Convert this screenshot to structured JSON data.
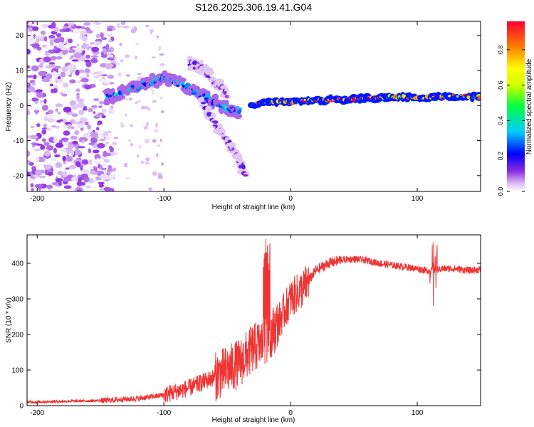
{
  "page": {
    "title": "S126.2025.306.19.41.G04"
  },
  "chart_data": [
    {
      "type": "heatmap",
      "title": "S126.2025.306.19.41.G04",
      "xlabel": "Height of straight line (km)",
      "ylabel": "Frequency (Hz)",
      "xlim": [
        -208,
        150
      ],
      "ylim": [
        -24.5,
        24
      ],
      "xticks": [
        -200,
        -100,
        0,
        100
      ],
      "xtick_labels": [
        "-200",
        "-100",
        "0",
        "100"
      ],
      "yticks": [
        -20,
        -10,
        0,
        10,
        20
      ],
      "ytick_labels": [
        "-20",
        "-10",
        "0",
        "10",
        "20"
      ],
      "colorbar": {
        "label": "Normalized spectral amplitude",
        "range": [
          0,
          0.96
        ],
        "ticks": [
          0.0,
          0.2,
          0.4,
          0.6,
          0.8
        ],
        "tick_labels": [
          "0.0",
          "0.2",
          "0.4",
          "0.6",
          "0.8"
        ],
        "colormap": "rainbow (white-violet-blue-cyan-green-yellow-orange-red)"
      },
      "features": [
        {
          "name": "noise region",
          "x_range": [
            -208,
            -140
          ],
          "y_range": [
            -24.5,
            24
          ],
          "amplitude": 0.03
        },
        {
          "name": "main arc",
          "points": [
            [
              -145,
              2
            ],
            [
              -130,
              4
            ],
            [
              -115,
              6
            ],
            [
              -100,
              8
            ],
            [
              -85,
              6
            ],
            [
              -70,
              3
            ],
            [
              -55,
              0
            ],
            [
              -40,
              -2
            ]
          ],
          "amplitude": 0.35
        },
        {
          "name": "descending branch",
          "points": [
            [
              -70,
              1
            ],
            [
              -60,
              -5
            ],
            [
              -50,
              -10
            ],
            [
              -40,
              -16
            ],
            [
              -35,
              -20
            ]
          ],
          "amplitude": 0.15
        },
        {
          "name": "upper branch",
          "points": [
            [
              -80,
              12
            ],
            [
              -70,
              11
            ],
            [
              -60,
              7
            ],
            [
              -50,
              3
            ]
          ],
          "amplitude": 0.15
        },
        {
          "name": "stable signal",
          "points": [
            [
              -30,
              0
            ],
            [
              -20,
              1
            ],
            [
              0,
              1
            ],
            [
              20,
              1.5
            ],
            [
              40,
              1.7
            ],
            [
              60,
              2.0
            ],
            [
              80,
              2.5
            ],
            [
              100,
              2.2
            ],
            [
              120,
              2.5
            ],
            [
              150,
              2.5
            ]
          ],
          "amplitude": 0.9
        }
      ]
    },
    {
      "type": "line",
      "xlabel": "Height of straight line (km)",
      "ylabel": "SNR (10 * v/v)",
      "xlim": [
        -208,
        150
      ],
      "ylim": [
        0,
        480
      ],
      "xticks": [
        -200,
        -100,
        0,
        100
      ],
      "xtick_labels": [
        "-200",
        "-100",
        "0",
        "100"
      ],
      "yticks": [
        0,
        100,
        200,
        300,
        400
      ],
      "ytick_labels": [
        "0",
        "100",
        "200",
        "300",
        "400"
      ],
      "series": [
        {
          "name": "SNR",
          "color": "#ee3333",
          "x": [
            -208,
            -180,
            -150,
            -120,
            -100,
            -80,
            -60,
            -40,
            -30,
            -20,
            -10,
            0,
            10,
            20,
            30,
            40,
            50,
            60,
            70,
            80,
            90,
            100,
            110,
            120,
            130,
            140,
            150
          ],
          "values": [
            10,
            12,
            14,
            20,
            30,
            50,
            80,
            120,
            160,
            180,
            230,
            300,
            330,
            380,
            400,
            410,
            412,
            408,
            400,
            395,
            390,
            385,
            378,
            385,
            385,
            380,
            382
          ]
        }
      ]
    }
  ]
}
